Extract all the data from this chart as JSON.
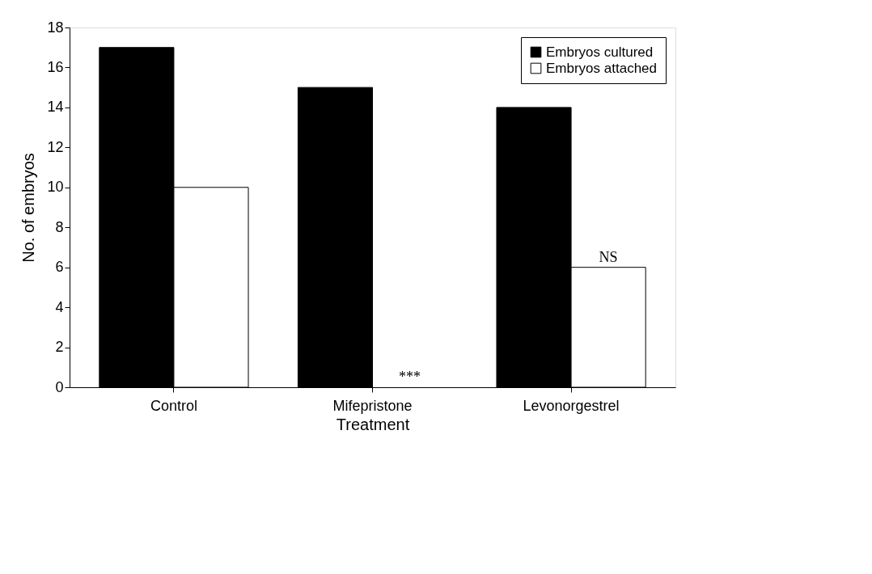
{
  "chart_data": {
    "type": "bar",
    "xlabel": "Treatment",
    "ylabel": "No. of embryos",
    "categories": [
      "Control",
      "Mifepristone",
      "Levonorgestrel"
    ],
    "series": [
      {
        "name": "Embryos cultured",
        "color": "#000000",
        "values": [
          17,
          15,
          14
        ]
      },
      {
        "name": "Embryos attached",
        "color": "#ffffff",
        "values": [
          10,
          0,
          6
        ]
      }
    ],
    "ylim": [
      0,
      18
    ],
    "yticks": [
      0,
      2,
      4,
      6,
      8,
      10,
      12,
      14,
      16,
      18
    ],
    "grid": false,
    "legend": "top right",
    "annotations": [
      {
        "text": "***",
        "x": "Mifepristone",
        "y": 0
      },
      {
        "text": "NS",
        "x": "Levonorgestrel",
        "y": 6
      }
    ]
  }
}
